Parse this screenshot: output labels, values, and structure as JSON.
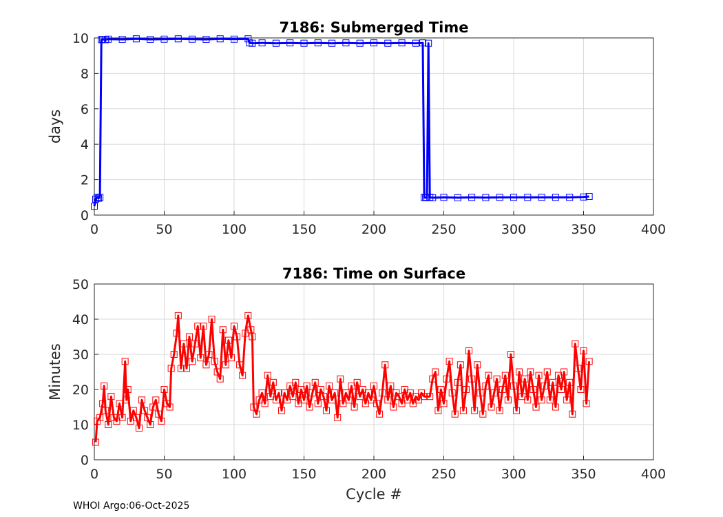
{
  "footer": "WHOI Argo:06-Oct-2025",
  "chart_data": [
    {
      "type": "line",
      "title": "7186: Submerged Time",
      "xlabel": "",
      "ylabel": "days",
      "xlim": [
        0,
        400
      ],
      "ylim": [
        0,
        10
      ],
      "xticks": [
        "0",
        "50",
        "100",
        "150",
        "200",
        "250",
        "300",
        "350",
        "400"
      ],
      "yticks": [
        "0",
        "2",
        "4",
        "6",
        "8",
        "10"
      ],
      "grid": true,
      "color": "#0000ff",
      "series": [
        {
          "points": [
            [
              0,
              0.5
            ],
            [
              1,
              0.9
            ],
            [
              2,
              1.0
            ],
            [
              3,
              0.95
            ],
            [
              4,
              1.0
            ],
            [
              5,
              9.9
            ],
            [
              6,
              9.92
            ],
            [
              8,
              9.9
            ],
            [
              10,
              9.93
            ],
            [
              20,
              9.92
            ],
            [
              30,
              9.95
            ],
            [
              40,
              9.92
            ],
            [
              50,
              9.93
            ],
            [
              60,
              9.95
            ],
            [
              70,
              9.93
            ],
            [
              80,
              9.92
            ],
            [
              90,
              9.95
            ],
            [
              100,
              9.93
            ],
            [
              110,
              9.95
            ],
            [
              111,
              9.72
            ],
            [
              113,
              9.7
            ],
            [
              120,
              9.72
            ],
            [
              130,
              9.7
            ],
            [
              140,
              9.72
            ],
            [
              150,
              9.7
            ],
            [
              160,
              9.72
            ],
            [
              170,
              9.7
            ],
            [
              180,
              9.72
            ],
            [
              190,
              9.7
            ],
            [
              200,
              9.72
            ],
            [
              210,
              9.7
            ],
            [
              220,
              9.72
            ],
            [
              230,
              9.7
            ],
            [
              235,
              9.72
            ],
            [
              236,
              1.0
            ],
            [
              237,
              0.98
            ],
            [
              238,
              1.0
            ],
            [
              239,
              9.7
            ],
            [
              240,
              1.0
            ],
            [
              242,
              0.98
            ],
            [
              250,
              1.0
            ],
            [
              260,
              0.98
            ],
            [
              270,
              1.0
            ],
            [
              280,
              0.99
            ],
            [
              290,
              1.0
            ],
            [
              300,
              1.0
            ],
            [
              310,
              1.0
            ],
            [
              320,
              1.0
            ],
            [
              330,
              1.0
            ],
            [
              340,
              1.0
            ],
            [
              350,
              1.02
            ],
            [
              354,
              1.05
            ]
          ]
        }
      ]
    },
    {
      "type": "line",
      "title": "7186: Time on Surface",
      "xlabel": "Cycle #",
      "ylabel": "Minutes",
      "xlim": [
        0,
        400
      ],
      "ylim": [
        0,
        50
      ],
      "xticks": [
        "0",
        "50",
        "100",
        "150",
        "200",
        "250",
        "300",
        "350",
        "400"
      ],
      "yticks": [
        "0",
        "10",
        "20",
        "30",
        "40",
        "50"
      ],
      "grid": true,
      "color": "#ff0000",
      "series": [
        {
          "points": [
            [
              1,
              5
            ],
            [
              2,
              11
            ],
            [
              4,
              12
            ],
            [
              6,
              16
            ],
            [
              7,
              21
            ],
            [
              8,
              14
            ],
            [
              10,
              10
            ],
            [
              12,
              18
            ],
            [
              14,
              12
            ],
            [
              16,
              11
            ],
            [
              18,
              16
            ],
            [
              20,
              12
            ],
            [
              22,
              28
            ],
            [
              23,
              17
            ],
            [
              24,
              20
            ],
            [
              26,
              11
            ],
            [
              28,
              14
            ],
            [
              30,
              12
            ],
            [
              32,
              9
            ],
            [
              34,
              17
            ],
            [
              36,
              14
            ],
            [
              38,
              12
            ],
            [
              40,
              10
            ],
            [
              42,
              15
            ],
            [
              44,
              17
            ],
            [
              46,
              13
            ],
            [
              48,
              11
            ],
            [
              50,
              20
            ],
            [
              52,
              16
            ],
            [
              54,
              15
            ],
            [
              55,
              26
            ],
            [
              57,
              30
            ],
            [
              59,
              36
            ],
            [
              60,
              41
            ],
            [
              62,
              26
            ],
            [
              64,
              33
            ],
            [
              66,
              26
            ],
            [
              68,
              35
            ],
            [
              70,
              28
            ],
            [
              72,
              33
            ],
            [
              74,
              38
            ],
            [
              76,
              29
            ],
            [
              78,
              38
            ],
            [
              80,
              27
            ],
            [
              82,
              30
            ],
            [
              84,
              40
            ],
            [
              86,
              28
            ],
            [
              88,
              25
            ],
            [
              90,
              23
            ],
            [
              92,
              37
            ],
            [
              94,
              27
            ],
            [
              96,
              34
            ],
            [
              98,
              29
            ],
            [
              100,
              38
            ],
            [
              102,
              35
            ],
            [
              104,
              27
            ],
            [
              106,
              24
            ],
            [
              108,
              36
            ],
            [
              110,
              41
            ],
            [
              112,
              37
            ],
            [
              113,
              35
            ],
            [
              114,
              15
            ],
            [
              116,
              13
            ],
            [
              118,
              17
            ],
            [
              120,
              19
            ],
            [
              122,
              16
            ],
            [
              124,
              24
            ],
            [
              126,
              18
            ],
            [
              128,
              22
            ],
            [
              130,
              17
            ],
            [
              132,
              19
            ],
            [
              134,
              14
            ],
            [
              136,
              19
            ],
            [
              138,
              17
            ],
            [
              140,
              21
            ],
            [
              142,
              18
            ],
            [
              144,
              22
            ],
            [
              146,
              16
            ],
            [
              148,
              20
            ],
            [
              150,
              17
            ],
            [
              152,
              21
            ],
            [
              154,
              15
            ],
            [
              156,
              19
            ],
            [
              158,
              22
            ],
            [
              160,
              16
            ],
            [
              162,
              20
            ],
            [
              164,
              18
            ],
            [
              166,
              14
            ],
            [
              168,
              21
            ],
            [
              170,
              17
            ],
            [
              172,
              19
            ],
            [
              174,
              12
            ],
            [
              176,
              23
            ],
            [
              178,
              16
            ],
            [
              180,
              19
            ],
            [
              182,
              17
            ],
            [
              184,
              21
            ],
            [
              186,
              15
            ],
            [
              188,
              22
            ],
            [
              190,
              18
            ],
            [
              192,
              20
            ],
            [
              194,
              16
            ],
            [
              196,
              19
            ],
            [
              198,
              17
            ],
            [
              200,
              21
            ],
            [
              202,
              16
            ],
            [
              204,
              13
            ],
            [
              206,
              19
            ],
            [
              208,
              27
            ],
            [
              210,
              17
            ],
            [
              212,
              21
            ],
            [
              214,
              15
            ],
            [
              216,
              19
            ],
            [
              218,
              18
            ],
            [
              220,
              16
            ],
            [
              222,
              20
            ],
            [
              224,
              17
            ],
            [
              226,
              19
            ],
            [
              228,
              16
            ],
            [
              230,
              18
            ],
            [
              232,
              17
            ],
            [
              234,
              19
            ],
            [
              236,
              18
            ],
            [
              240,
              18
            ],
            [
              242,
              23
            ],
            [
              244,
              25
            ],
            [
              246,
              14
            ],
            [
              248,
              20
            ],
            [
              250,
              16
            ],
            [
              252,
              23
            ],
            [
              254,
              28
            ],
            [
              256,
              19
            ],
            [
              258,
              13
            ],
            [
              260,
              22
            ],
            [
              262,
              27
            ],
            [
              264,
              14
            ],
            [
              266,
              20
            ],
            [
              268,
              31
            ],
            [
              270,
              23
            ],
            [
              272,
              14
            ],
            [
              274,
              27
            ],
            [
              276,
              19
            ],
            [
              278,
              13
            ],
            [
              280,
              21
            ],
            [
              282,
              24
            ],
            [
              284,
              15
            ],
            [
              286,
              19
            ],
            [
              288,
              23
            ],
            [
              290,
              14
            ],
            [
              292,
              20
            ],
            [
              294,
              24
            ],
            [
              296,
              17
            ],
            [
              298,
              30
            ],
            [
              300,
              21
            ],
            [
              302,
              14
            ],
            [
              304,
              25
            ],
            [
              306,
              18
            ],
            [
              308,
              23
            ],
            [
              310,
              17
            ],
            [
              312,
              25
            ],
            [
              314,
              20
            ],
            [
              316,
              15
            ],
            [
              318,
              24
            ],
            [
              320,
              17
            ],
            [
              322,
              21
            ],
            [
              324,
              25
            ],
            [
              326,
              17
            ],
            [
              328,
              22
            ],
            [
              330,
              15
            ],
            [
              332,
              24
            ],
            [
              334,
              20
            ],
            [
              336,
              25
            ],
            [
              338,
              17
            ],
            [
              340,
              22
            ],
            [
              342,
              13
            ],
            [
              344,
              33
            ],
            [
              346,
              26
            ],
            [
              348,
              20
            ],
            [
              350,
              31
            ],
            [
              352,
              16
            ],
            [
              354,
              28
            ]
          ]
        }
      ]
    }
  ]
}
